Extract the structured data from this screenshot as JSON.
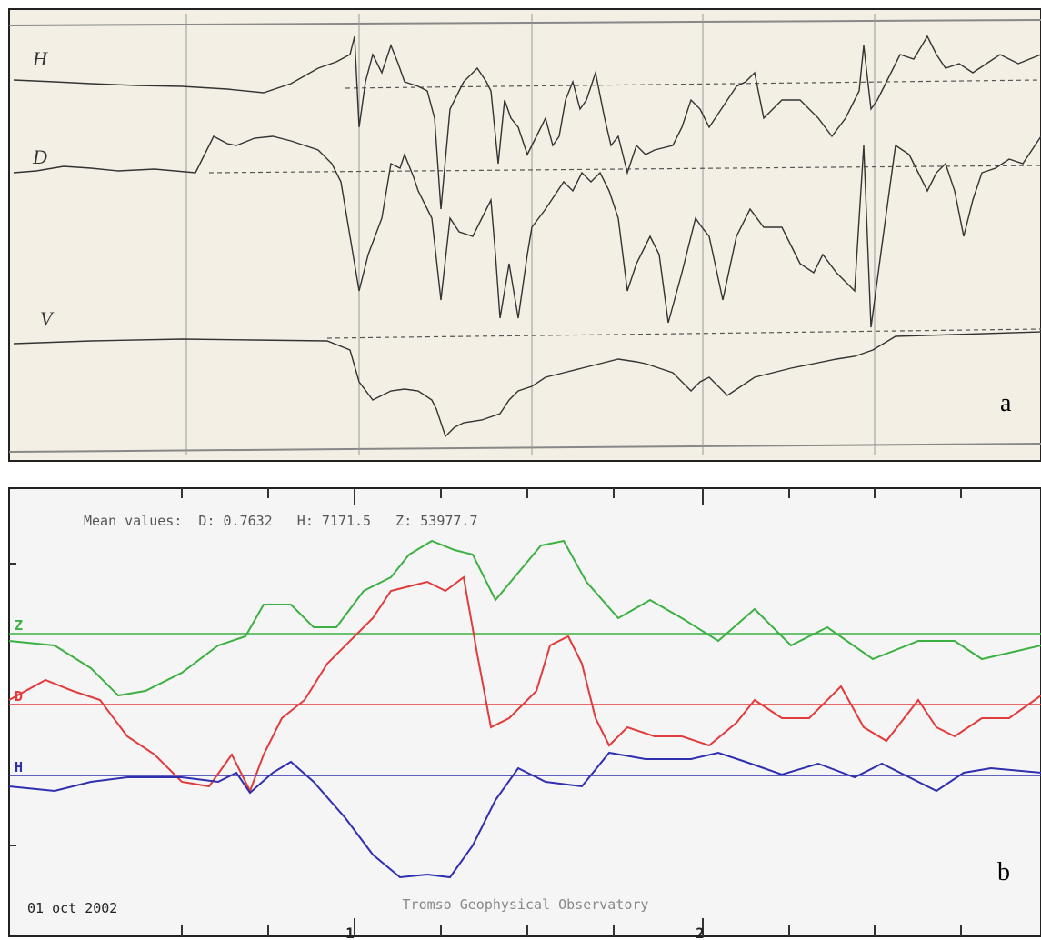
{
  "panel_a": {
    "labels": [
      "H",
      "D",
      "V"
    ],
    "panel_letter": "a"
  },
  "panel_b": {
    "mean_values": "Mean values:  D: 0.7632   H: 7171.5   Z: 53977.7",
    "labels": [
      "Z",
      "D",
      "H"
    ],
    "date": "01 oct 2002",
    "observatory": "Tromso Geophysical Observatory",
    "hour_ticks": [
      "1",
      "2"
    ],
    "panel_letter": "b"
  }
}
